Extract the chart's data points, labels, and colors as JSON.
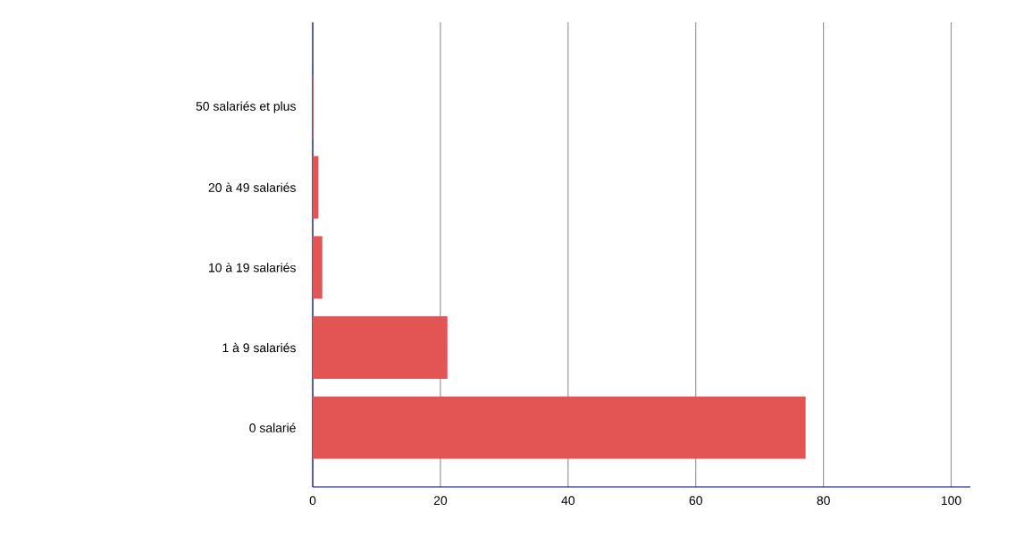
{
  "chart_data": {
    "type": "bar",
    "orientation": "horizontal",
    "categories": [
      "50 salariés et plus",
      "20 à 49 salariés",
      "10 à 19 salariés",
      "1 à 9 salariés",
      "0 salarié"
    ],
    "values": [
      0.1,
      0.9,
      1.5,
      21.1,
      77.2
    ],
    "color": "#e35555",
    "xlim": [
      0,
      103
    ],
    "xticks": [
      0,
      20,
      40,
      60,
      80,
      100
    ],
    "grid": "x"
  }
}
